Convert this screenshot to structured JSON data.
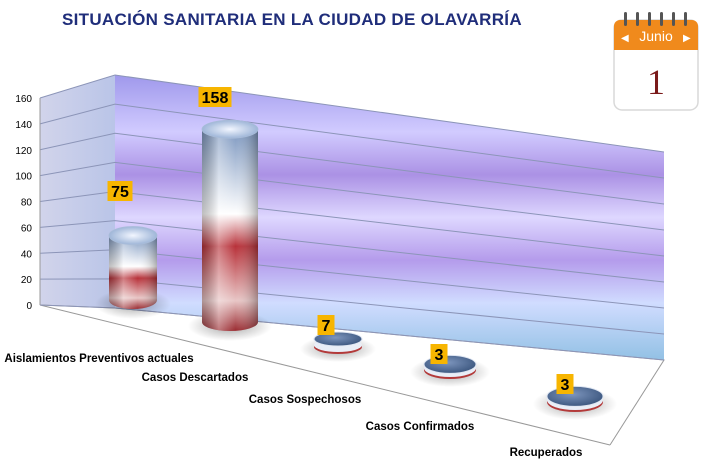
{
  "title": "SITUACIÓN SANITARIA EN LA CIUDAD DE OLAVARRÍA",
  "calendar": {
    "month": "Junio",
    "day": "1",
    "icon": "calendar-icon"
  },
  "chart_data": {
    "type": "bar",
    "style": "3d-cylinder",
    "categories": [
      "Aislamientos Preventivos actuales",
      "Casos Descartados",
      "Casos Sospechosos",
      "Casos Confirmados",
      "Recuperados"
    ],
    "values": [
      75,
      158,
      7,
      3,
      3
    ],
    "data_labels": [
      "75",
      "158",
      "7",
      "3",
      "3"
    ],
    "yticks": [
      "0",
      "20",
      "40",
      "60",
      "80",
      "100",
      "120",
      "140",
      "160"
    ],
    "ylim": [
      0,
      160
    ],
    "grid": true,
    "colors": {
      "bar_top": "#6f8fb8",
      "bar_mid": "#ffffff",
      "bar_bottom": "#b33a3a",
      "label_bg": "#f7b500",
      "wall": "#9f8fe6",
      "title": "#1f2d7a",
      "calendar_header": "#f08a1c",
      "calendar_day": "#7a1a1a"
    }
  }
}
